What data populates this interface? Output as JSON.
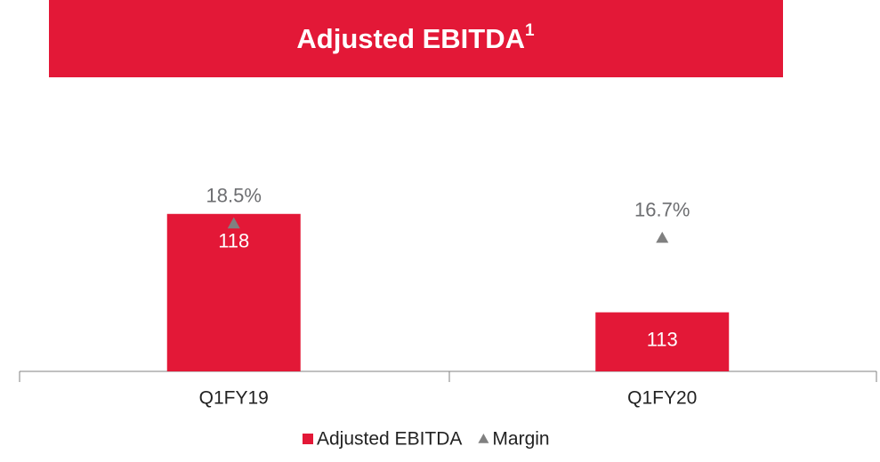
{
  "chart_data": {
    "type": "bar",
    "title": "Adjusted EBITDA",
    "title_superscript": "1",
    "categories": [
      "Q1FY19",
      "Q1FY20"
    ],
    "series": [
      {
        "name": "Adjusted EBITDA",
        "color": "#e31837",
        "values": [
          118,
          113
        ]
      },
      {
        "name": "Margin",
        "color": "#808080",
        "values": [
          18.5,
          16.7
        ],
        "value_labels": [
          "18.5%",
          "16.7%"
        ],
        "axis": "y2",
        "marker": "triangle"
      }
    ],
    "ylim": [
      110,
      123
    ],
    "y2lim": [
      0,
      32
    ],
    "grid": false,
    "legend": "bottom"
  }
}
